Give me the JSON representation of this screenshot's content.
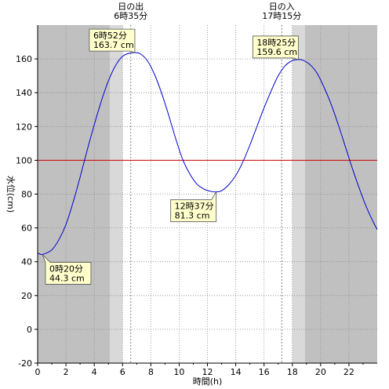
{
  "chart_data": {
    "type": "line",
    "xlabel": "時間(h)",
    "ylabel": "水位(cm)",
    "xlim": [
      0,
      24
    ],
    "ylim": [
      -20,
      180
    ],
    "x_ticks": [
      0,
      2,
      4,
      6,
      8,
      10,
      12,
      14,
      16,
      18,
      20,
      22
    ],
    "y_ticks": [
      -20,
      0,
      20,
      40,
      60,
      80,
      100,
      120,
      140,
      160
    ],
    "grid": true,
    "reference_line": {
      "y": 100,
      "color": "#cc0000"
    },
    "sunrise": {
      "label": "日の出",
      "time_label": "6時35分",
      "x": 6.583
    },
    "sunset": {
      "label": "日の入",
      "time_label": "17時15分",
      "x": 17.25
    },
    "twilight_bands": [
      {
        "from": 5.1,
        "to": 6.0,
        "shade": "mid"
      },
      {
        "from": 18.0,
        "to": 18.9,
        "shade": "mid"
      }
    ],
    "night_color": "#c0c0c0",
    "twilight_color": "#d9d9d9",
    "day_color": "#ffffff",
    "series_color": "#0000cc",
    "series": [
      {
        "x": [
          0,
          0.33,
          1,
          1.5,
          2,
          2.5,
          3,
          3.5,
          4,
          4.5,
          5,
          5.5,
          6,
          6.5,
          6.87,
          7.25,
          7.75,
          8.25,
          8.75,
          9.25,
          9.75,
          10.25,
          10.75,
          11.25,
          11.75,
          12.25,
          12.62,
          13,
          13.5,
          14,
          14.5,
          15,
          15.5,
          16,
          16.5,
          17,
          17.5,
          18,
          18.42,
          18.75,
          19.25,
          19.75,
          20.25,
          20.75,
          21.25,
          21.75,
          22.25,
          22.75,
          23.25,
          23.75,
          24
        ],
        "values": [
          45.2,
          44.3,
          47,
          53,
          62,
          75,
          90,
          106,
          121,
          135,
          147,
          156,
          161.5,
          163.4,
          163.7,
          163,
          159,
          151,
          140,
          127,
          113,
          100.5,
          92,
          86,
          83,
          81.6,
          81.3,
          82,
          85.5,
          91,
          99,
          109,
          120,
          131,
          141,
          150,
          156,
          159,
          159.6,
          159.2,
          156.6,
          151.5,
          143,
          133,
          121,
          108,
          95,
          83,
          72,
          63,
          59
        ]
      }
    ],
    "annotations": [
      {
        "x": 0.33,
        "y": 44.3,
        "time": "0時20分",
        "value": "44.3 cm",
        "kind": "low"
      },
      {
        "x": 6.87,
        "y": 163.7,
        "time": "6時52分",
        "value": "163.7 cm",
        "kind": "high"
      },
      {
        "x": 12.62,
        "y": 81.3,
        "time": "12時37分",
        "value": "81.3 cm",
        "kind": "low"
      },
      {
        "x": 18.42,
        "y": 159.6,
        "time": "18時25分",
        "value": "159.6 cm",
        "kind": "high"
      }
    ]
  }
}
